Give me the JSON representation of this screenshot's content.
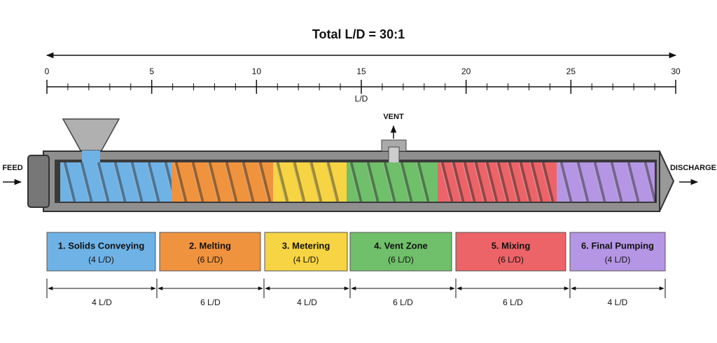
{
  "title": "Total L/D = 30:1",
  "ruler": {
    "labels": [
      0,
      5,
      10,
      15,
      20,
      25,
      30
    ],
    "axis_label": "L/D"
  },
  "vent_label": "VENT",
  "feed_label": "FEED",
  "discharge_label": "DISCHARGE",
  "zones": [
    {
      "name": "1. Solids Conveying",
      "detail": "(4 L/D)",
      "dimension": "4 L/D",
      "color": "#6fb2e6"
    },
    {
      "name": "2. Melting",
      "detail": "(6 L/D)",
      "dimension": "6 L/D",
      "color": "#f0933e"
    },
    {
      "name": "3. Metering",
      "detail": "(4 L/D)",
      "dimension": "4 L/D",
      "color": "#f7d443"
    },
    {
      "name": "4. Vent Zone",
      "detail": "(6 L/D)",
      "dimension": "6 L/D",
      "color": "#70bf6a"
    },
    {
      "name": "5. Mixing",
      "detail": "(6 L/D)",
      "dimension": "6 L/D",
      "color": "#ec6468"
    },
    {
      "name": "6. Final Pumping",
      "detail": "(4 L/D)",
      "dimension": "4 L/D",
      "color": "#b596e4"
    }
  ]
}
